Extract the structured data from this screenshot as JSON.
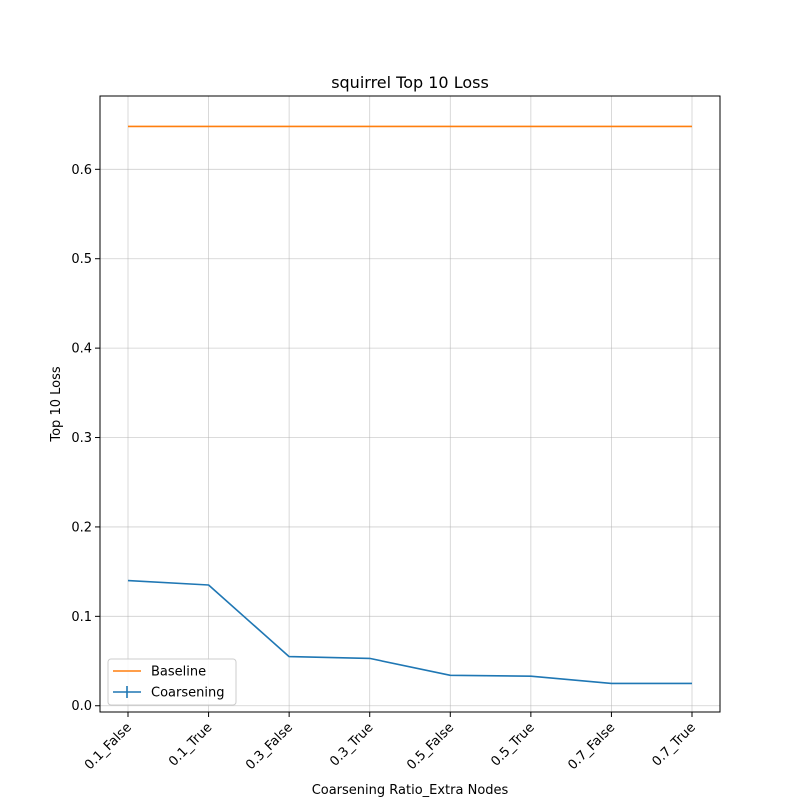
{
  "chart_data": {
    "type": "line",
    "title": "squirrel Top 10 Loss",
    "xlabel": "Coarsening Ratio_Extra Nodes",
    "ylabel": "Top 10 Loss",
    "categories": [
      "0.1_False",
      "0.1_True",
      "0.3_False",
      "0.3_True",
      "0.5_False",
      "0.5_True",
      "0.7_False",
      "0.7_True"
    ],
    "yticks": [
      "0.0",
      "0.1",
      "0.2",
      "0.3",
      "0.4",
      "0.5",
      "0.6"
    ],
    "ylim": [
      -0.007,
      0.682
    ],
    "grid": true,
    "legend_position": "lower-left",
    "series": [
      {
        "name": "Baseline",
        "color": "#ff7f0e",
        "values": [
          0.648,
          0.648,
          0.648,
          0.648,
          0.648,
          0.648,
          0.648,
          0.648
        ]
      },
      {
        "name": "Coarsening",
        "color": "#1f77b4",
        "values": [
          0.14,
          0.135,
          0.055,
          0.053,
          0.034,
          0.033,
          0.025,
          0.025
        ]
      }
    ]
  }
}
